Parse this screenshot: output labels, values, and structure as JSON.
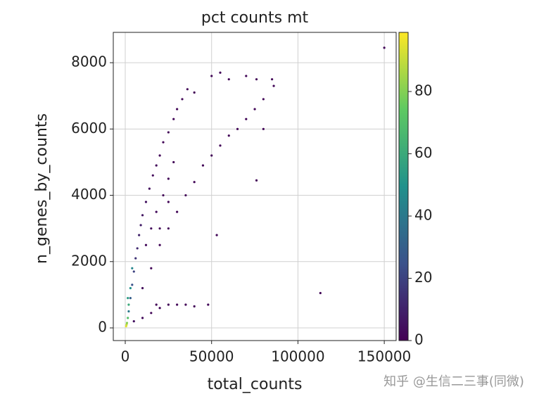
{
  "chart_data": {
    "type": "scatter",
    "title": "pct counts mt",
    "xlabel": "total_counts",
    "ylabel": "n_genes_by_counts",
    "x": [
      2000,
      3000,
      4000,
      5000,
      6000,
      7000,
      8000,
      9000,
      10000,
      12000,
      14000,
      16000,
      18000,
      20000,
      22000,
      25000,
      28000,
      30000,
      33000,
      36000,
      40000,
      50000,
      55000,
      60000,
      70000,
      76000,
      85000,
      86000,
      10000,
      15000,
      20000,
      25000,
      30000,
      35000,
      40000,
      45000,
      50000,
      55000,
      60000,
      65000,
      70000,
      75000,
      80000,
      12000,
      15000,
      18000,
      22000,
      25000,
      28000,
      20000,
      25000,
      5000,
      10000,
      15000,
      20000,
      25000,
      30000,
      35000,
      40000,
      48000,
      18000,
      500,
      800,
      1000,
      1500,
      2000,
      3000,
      1500,
      4000,
      150000,
      113000,
      76000,
      53000,
      80000
    ],
    "y": [
      500,
      900,
      1300,
      1700,
      2100,
      2400,
      2800,
      3100,
      3400,
      3800,
      4200,
      4600,
      4900,
      5200,
      5600,
      5900,
      6300,
      6600,
      6900,
      7200,
      7100,
      7600,
      7700,
      7500,
      7600,
      7500,
      7500,
      7300,
      1200,
      1800,
      2500,
      3000,
      3500,
      4000,
      4400,
      4900,
      5200,
      5500,
      5800,
      6000,
      6300,
      6600,
      6900,
      2500,
      3000,
      3500,
      4000,
      4500,
      5000,
      3000,
      3800,
      200,
      300,
      450,
      600,
      700,
      700,
      700,
      650,
      700,
      700,
      50,
      100,
      150,
      300,
      700,
      1200,
      900,
      1800,
      8450,
      1050,
      4450,
      2800,
      6000
    ],
    "c": [
      40,
      30,
      25,
      20,
      15,
      12,
      10,
      8,
      6,
      5,
      4,
      3,
      3,
      2,
      2,
      2,
      2,
      2,
      2,
      2,
      2,
      2,
      2,
      2,
      2,
      2,
      2,
      2,
      3,
      2,
      2,
      2,
      2,
      2,
      2,
      2,
      2,
      2,
      2,
      2,
      2,
      2,
      2,
      3,
      3,
      3,
      2,
      2,
      2,
      2,
      2,
      5,
      3,
      2,
      2,
      2,
      2,
      2,
      2,
      2,
      2,
      95,
      90,
      80,
      70,
      60,
      50,
      55,
      45,
      2,
      2,
      2,
      2,
      2
    ],
    "colormap": "viridis",
    "xlim": [
      -6930,
      156880
    ],
    "xticks": [
      0,
      50000,
      100000,
      150000
    ],
    "ylim": [
      -382,
      8915
    ],
    "yticks": [
      0,
      2000,
      4000,
      6000,
      8000
    ],
    "clim": [
      0,
      99
    ],
    "cticks": [
      0,
      20,
      40,
      60,
      80
    ],
    "grid": true
  },
  "watermark": "知乎 @生信二三事(同微)"
}
